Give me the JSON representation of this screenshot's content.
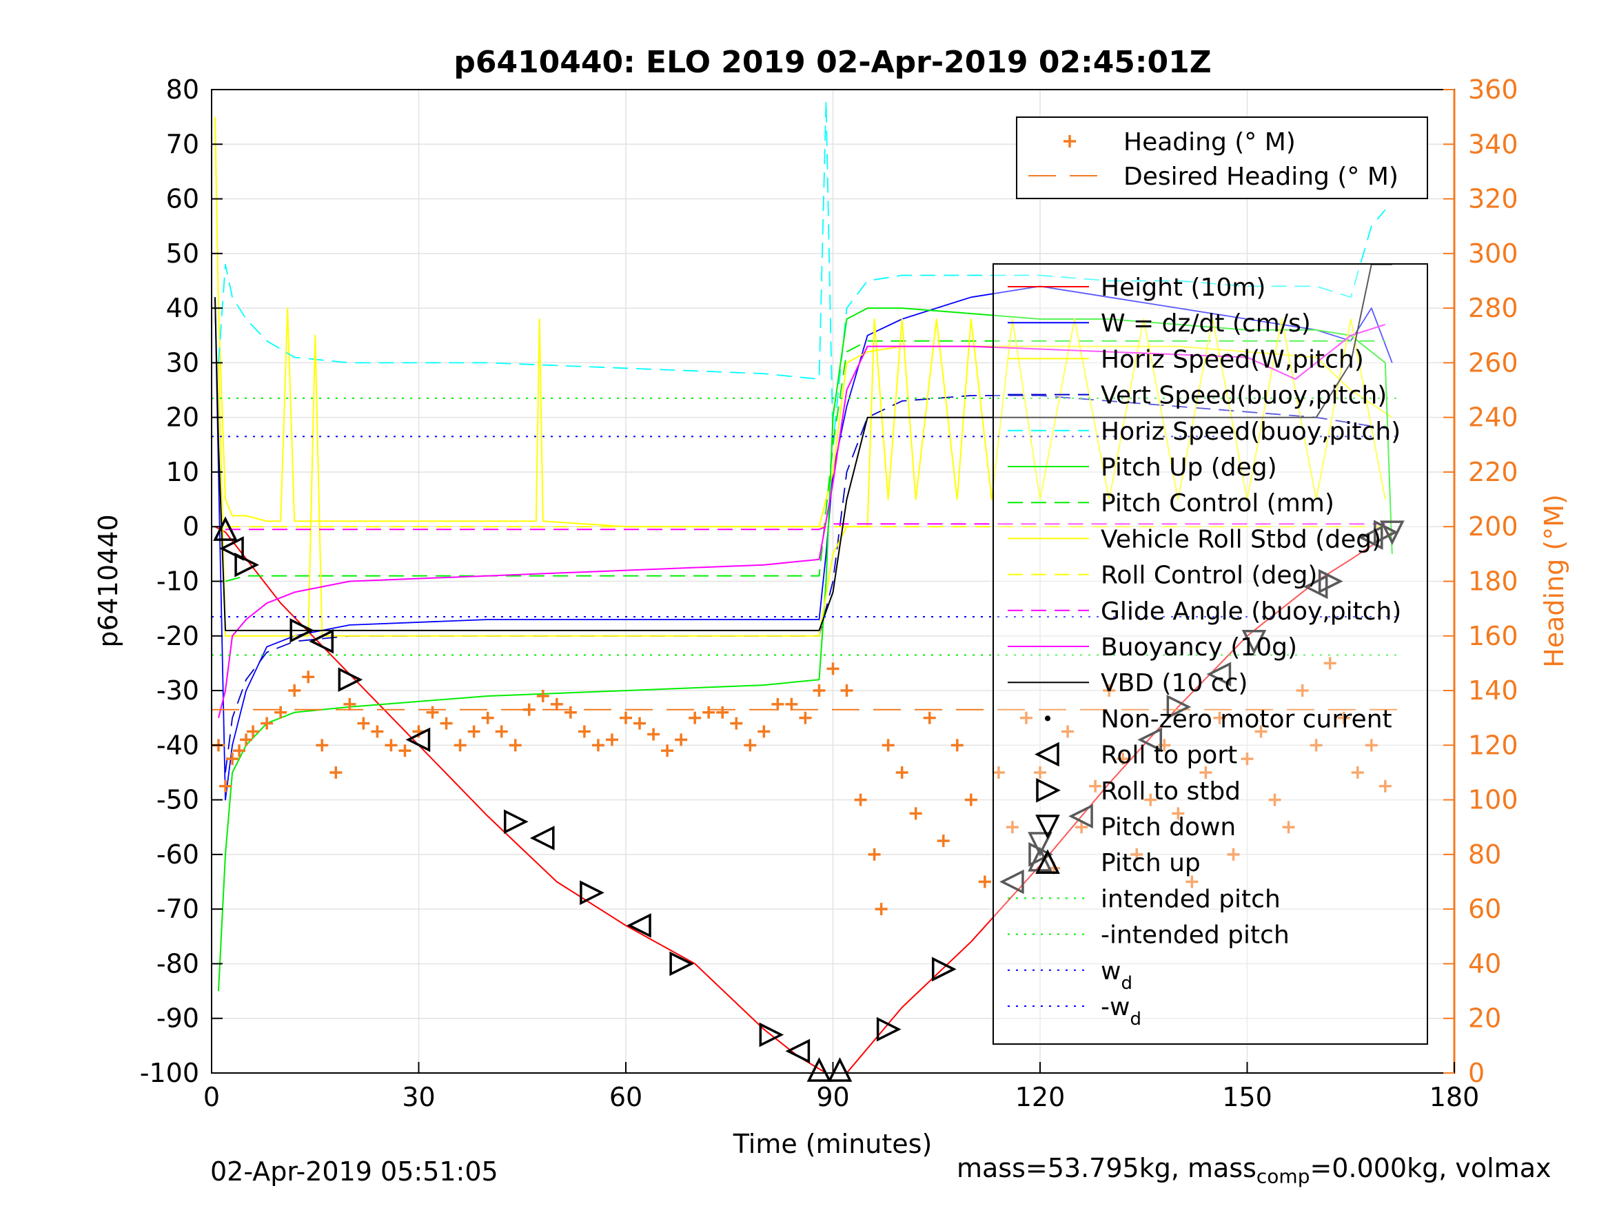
{
  "chart_data": {
    "type": "line",
    "title": "p6410440: ELO 2019 02-Apr-2019 02:45:01Z",
    "xlabel": "Time (minutes)",
    "ylabel": "p6410440",
    "y2label": "Heading (°M)",
    "xlim": [
      0,
      180
    ],
    "ylim": [
      -100,
      80
    ],
    "y2lim": [
      0,
      360
    ],
    "xticks": [
      "0",
      "30",
      "60",
      "90",
      "120",
      "150",
      "180"
    ],
    "yticks": [
      "80",
      "70",
      "60",
      "50",
      "40",
      "30",
      "20",
      "10",
      "0",
      "-10",
      "-20",
      "-30",
      "-40",
      "-50",
      "-60",
      "-70",
      "-80",
      "-90",
      "-100"
    ],
    "y2ticks": [
      "360",
      "340",
      "320",
      "300",
      "280",
      "260",
      "240",
      "220",
      "200",
      "180",
      "160",
      "140",
      "120",
      "100",
      "80",
      "60",
      "40",
      "20",
      "0"
    ],
    "grid": true,
    "colors": {
      "height": "#ff0000",
      "w": "#0000ff",
      "horiz_w": "#ffff00",
      "vert_buoy": "#0000cc",
      "horiz_buoy": "#00ffff",
      "pitch": "#00ee00",
      "roll": "#ffff00",
      "glide": "#ff00ff",
      "buoyancy": "#ff00ff",
      "vbd": "#000000",
      "heading": "#f47a1f",
      "axis2": "#f47a1f"
    },
    "legend_heading": [
      "Heading (° M)",
      "Desired Heading (° M)"
    ],
    "legend_main": [
      "Height (10m)",
      "W = dz/dt (cm/s)",
      "Horiz Speed(W,pitch)",
      "Vert Speed(buoy,pitch)",
      "Horiz Speed(buoy,pitch)",
      "Pitch Up (deg)",
      "Pitch Control (mm)",
      "Vehicle Roll Stbd (deg)",
      "Roll Control (deg)",
      "Glide Angle (buoy,pitch)",
      "Buoyancy (10g)",
      "VBD (10 cc)",
      "Non-zero motor current",
      "Roll to port",
      "Roll to stbd",
      "Pitch down",
      "Pitch up",
      "intended pitch",
      "-intended pitch",
      "w",
      "-w"
    ],
    "legend_subscript": "d",
    "series": [
      {
        "name": "Height (10m)",
        "x": [
          0.5,
          2,
          10,
          20,
          30,
          40,
          50,
          60,
          70,
          80,
          85,
          89,
          92,
          100,
          110,
          120,
          130,
          140,
          150,
          160,
          165,
          171
        ],
        "y": [
          0,
          -1,
          -14,
          -27,
          -40,
          -53,
          -65,
          -73,
          -80,
          -92,
          -97,
          -100,
          -100,
          -88,
          -76,
          -62,
          -47,
          -33,
          -20,
          -10,
          -6,
          -1
        ]
      },
      {
        "name": "W = dz/dt (cm/s)",
        "x": [
          0.5,
          1,
          2,
          3,
          5,
          8,
          12,
          20,
          40,
          60,
          80,
          88,
          89,
          90,
          92,
          95,
          100,
          110,
          120,
          130,
          140,
          150,
          160,
          165,
          168,
          171
        ],
        "y": [
          42,
          10,
          -50,
          -40,
          -30,
          -22,
          -20,
          -18,
          -17,
          -17,
          -17,
          -17,
          -5,
          10,
          22,
          35,
          38,
          42,
          44,
          42,
          40,
          38,
          36,
          34,
          40,
          30
        ]
      },
      {
        "name": "Horiz Speed(W,pitch)",
        "x": [
          0.5,
          1,
          2,
          3,
          5,
          8,
          10,
          11,
          12,
          14,
          20,
          30,
          47,
          47.5,
          48,
          60,
          80,
          88,
          90,
          92,
          95,
          100,
          110,
          120,
          130,
          140,
          150,
          160,
          165,
          171
        ],
        "y": [
          75,
          40,
          5,
          2,
          2,
          1,
          1,
          40,
          1,
          1,
          1,
          1,
          1,
          38,
          1,
          0,
          0,
          0,
          10,
          30,
          32,
          33,
          33,
          33,
          33,
          33,
          32,
          31,
          25,
          20
        ]
      },
      {
        "name": "Vert Speed(buoy,pitch)",
        "x": [
          2,
          3,
          5,
          8,
          12,
          20,
          40,
          60,
          80,
          88,
          90,
          92,
          95,
          100,
          110,
          120,
          130,
          140,
          150,
          160,
          165,
          170
        ],
        "y": [
          -45,
          -35,
          -28,
          -23,
          -21,
          -20,
          -20,
          -20,
          -20,
          -20,
          -10,
          10,
          20,
          23,
          24,
          24,
          23,
          22,
          21,
          20,
          19,
          18
        ]
      },
      {
        "name": "Horiz Speed(buoy,pitch)",
        "x": [
          1,
          2,
          3,
          5,
          8,
          12,
          20,
          40,
          60,
          80,
          88,
          89,
          90,
          92,
          95,
          100,
          110,
          120,
          130,
          140,
          150,
          160,
          165,
          168,
          170
        ],
        "y": [
          30,
          48,
          42,
          38,
          34,
          31,
          30,
          30,
          29,
          28,
          27,
          78,
          15,
          40,
          45,
          46,
          46,
          46,
          45,
          45,
          44,
          44,
          42,
          55,
          58
        ]
      },
      {
        "name": "Pitch Up (deg)",
        "x": [
          1,
          2,
          3,
          5,
          8,
          12,
          20,
          40,
          60,
          80,
          88,
          89,
          90,
          92,
          95,
          100,
          110,
          120,
          130,
          140,
          150,
          160,
          165,
          170,
          171
        ],
        "y": [
          -85,
          -60,
          -45,
          -40,
          -36,
          -34,
          -33,
          -31,
          -30,
          -29,
          -28,
          -10,
          20,
          38,
          40,
          40,
          39,
          38,
          38,
          37,
          36,
          36,
          35,
          30,
          -5
        ]
      },
      {
        "name": "Pitch Control (mm)",
        "x": [
          2,
          5,
          20,
          40,
          60,
          80,
          88,
          90,
          92,
          95,
          110,
          130,
          150,
          165,
          170
        ],
        "y": [
          -10,
          -9,
          -9,
          -9,
          -9,
          -9,
          -9,
          15,
          32,
          34,
          34,
          34,
          34,
          34,
          34
        ]
      },
      {
        "name": "Vehicle Roll Stbd (deg)",
        "x": [
          1,
          2,
          4,
          10,
          14,
          15,
          16,
          20,
          30,
          40,
          50,
          60,
          70,
          80,
          88,
          90,
          92,
          95,
          96,
          98,
          100,
          102,
          105,
          108,
          110,
          113,
          116,
          120,
          125,
          130,
          135,
          140,
          145,
          150,
          155,
          160,
          165,
          170
        ],
        "y": [
          30,
          -20,
          -20,
          -20,
          -20,
          35,
          -20,
          -20,
          -20,
          -20,
          -20,
          -20,
          -20,
          -20,
          -20,
          -5,
          0,
          0,
          38,
          5,
          38,
          5,
          38,
          5,
          38,
          5,
          38,
          5,
          38,
          5,
          38,
          5,
          38,
          5,
          38,
          5,
          38,
          5
        ]
      },
      {
        "name": "Roll Control (deg)",
        "x": [
          2,
          20,
          40,
          60,
          80,
          88,
          92,
          110,
          130,
          150,
          170
        ],
        "y": [
          0,
          0,
          0,
          0,
          0,
          0,
          0,
          0,
          0,
          0,
          0
        ]
      },
      {
        "name": "Glide Angle (buoy,pitch)",
        "x": [
          2,
          20,
          40,
          60,
          80,
          88,
          90,
          92,
          110,
          130,
          150,
          170
        ],
        "y": [
          -0.5,
          -0.5,
          -0.5,
          -0.5,
          -0.5,
          -0.5,
          0.5,
          0.5,
          0.5,
          0.5,
          0.5,
          0.5
        ]
      },
      {
        "name": "Buoyancy (10g)",
        "x": [
          1,
          2,
          3,
          5,
          8,
          12,
          20,
          40,
          60,
          80,
          88,
          90,
          92,
          95,
          110,
          130,
          150,
          157,
          160,
          165,
          170
        ],
        "y": [
          -35,
          -30,
          -20,
          -17,
          -14,
          -12,
          -10,
          -9,
          -8,
          -7,
          -6,
          8,
          25,
          33,
          33,
          32,
          31,
          27,
          30,
          35,
          37
        ]
      },
      {
        "name": "VBD (10 cc)",
        "x": [
          0.5,
          1,
          2,
          3,
          5,
          20,
          40,
          60,
          80,
          88,
          90,
          92,
          95,
          100,
          120,
          140,
          160,
          165,
          168,
          171
        ],
        "y": [
          42,
          15,
          -19,
          -19,
          -19,
          -19,
          -19,
          -19,
          -19,
          -19,
          -12,
          5,
          20,
          20,
          20,
          20,
          20,
          30,
          48,
          48
        ]
      },
      {
        "name": "intended pitch",
        "x": [
          0,
          172
        ],
        "y": [
          23.5,
          23.5
        ]
      },
      {
        "name": "-intended pitch",
        "x": [
          0,
          172
        ],
        "y": [
          -23.5,
          -23.5
        ]
      },
      {
        "name": "w",
        "x": [
          0,
          172
        ],
        "y": [
          16.5,
          16.5
        ]
      },
      {
        "name": "-w",
        "x": [
          0,
          172
        ],
        "y": [
          -16.5,
          -16.5
        ]
      }
    ],
    "heading_points": {
      "x": [
        1,
        2,
        3,
        4,
        5,
        6,
        8,
        10,
        12,
        14,
        16,
        18,
        20,
        22,
        24,
        26,
        28,
        30,
        32,
        34,
        36,
        38,
        40,
        42,
        44,
        46,
        48,
        50,
        52,
        54,
        56,
        58,
        60,
        62,
        64,
        66,
        68,
        70,
        72,
        74,
        76,
        78,
        80,
        82,
        84,
        86,
        88,
        90,
        92,
        94,
        96,
        97,
        98,
        100,
        102,
        104,
        106,
        108,
        110,
        112,
        114,
        116,
        118,
        120,
        122,
        124,
        126,
        128,
        130,
        132,
        134,
        136,
        138,
        140,
        142,
        144,
        146,
        148,
        150,
        152,
        154,
        156,
        158,
        160,
        162,
        164,
        166,
        168,
        170
      ],
      "y": [
        120,
        105,
        115,
        118,
        122,
        125,
        128,
        132,
        140,
        145,
        120,
        110,
        135,
        128,
        125,
        120,
        118,
        125,
        132,
        128,
        120,
        125,
        130,
        125,
        120,
        133,
        138,
        135,
        132,
        125,
        120,
        122,
        130,
        128,
        124,
        118,
        122,
        130,
        132,
        132,
        128,
        120,
        125,
        135,
        135,
        130,
        140,
        148,
        140,
        100,
        80,
        60,
        120,
        110,
        95,
        130,
        85,
        120,
        100,
        70,
        110,
        90,
        130,
        110,
        75,
        125,
        90,
        105,
        140,
        115,
        80,
        100,
        120,
        95,
        70,
        110,
        130,
        80,
        115,
        125,
        100,
        90,
        140,
        120,
        150,
        130,
        110,
        120,
        105
      ]
    },
    "desired_heading": {
      "x": [
        0,
        172
      ],
      "y": [
        133,
        133
      ]
    },
    "event_markers": {
      "roll_to_port": [
        [
          3,
          -4
        ],
        [
          16,
          -21
        ],
        [
          30,
          -39
        ],
        [
          48,
          -57
        ],
        [
          62,
          -73
        ],
        [
          85,
          -96
        ],
        [
          116,
          -65
        ],
        [
          126,
          -53
        ],
        [
          136,
          -39
        ],
        [
          146,
          -27
        ],
        [
          160,
          -11
        ],
        [
          168,
          -2
        ]
      ],
      "roll_to_stbd": [
        [
          5,
          -7
        ],
        [
          13,
          -19
        ],
        [
          20,
          -28
        ],
        [
          44,
          -54
        ],
        [
          55,
          -67
        ],
        [
          68,
          -80
        ],
        [
          81,
          -93
        ],
        [
          98,
          -92
        ],
        [
          106,
          -81
        ],
        [
          120,
          -60
        ],
        [
          140,
          -33
        ],
        [
          162,
          -10
        ],
        [
          170,
          -1
        ]
      ],
      "pitch_down": [
        [
          120,
          -58
        ],
        [
          151,
          -21
        ],
        [
          171,
          -1
        ]
      ],
      "pitch_up": [
        [
          2,
          -0.5
        ],
        [
          88,
          -99.5
        ],
        [
          91,
          -99.5
        ],
        [
          120,
          -61
        ]
      ]
    }
  },
  "footer": {
    "timestamp": "02-Apr-2019 05:51:05",
    "mass_text": "mass=53.795kg, mass",
    "mass_sub": "comp",
    "mass_tail": "=0.000kg, volmax"
  }
}
